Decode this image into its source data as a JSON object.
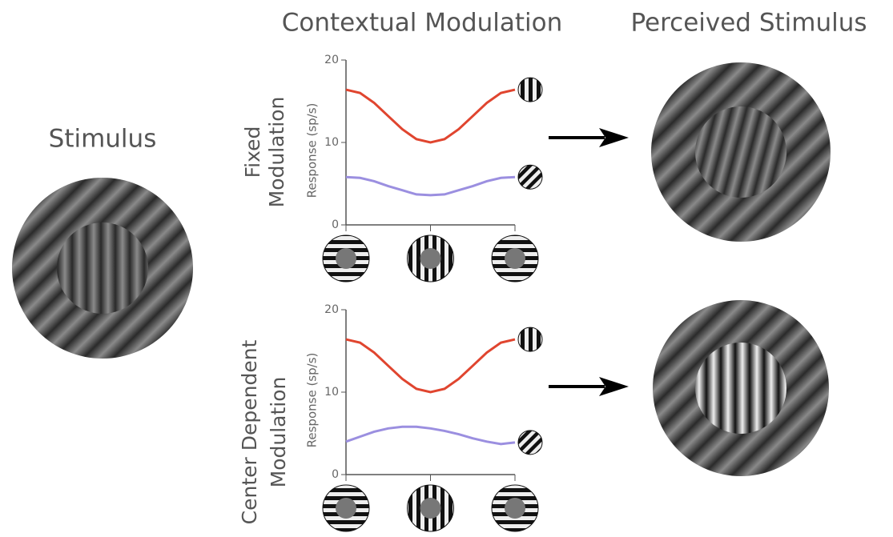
{
  "header": {
    "stimulus": "Stimulus",
    "contextual": "Contextual Modulation",
    "perceived": "Perceived Stimulus"
  },
  "chart_data": [
    {
      "type": "line",
      "label_lines": [
        "Fixed",
        "Modulation"
      ],
      "y_label": "Response (sp/s)",
      "x": [
        0,
        15,
        30,
        45,
        60,
        75,
        90,
        105,
        120,
        135,
        150,
        165,
        180
      ],
      "xlim": [
        0,
        180
      ],
      "xticks": [
        0,
        90,
        180
      ],
      "ylim": [
        0,
        20
      ],
      "yticks": [
        0,
        10,
        20
      ],
      "series": [
        {
          "color": "#e0452f",
          "values": [
            16.4,
            16.0,
            14.8,
            13.2,
            11.6,
            10.4,
            10.0,
            10.4,
            11.6,
            13.2,
            14.8,
            16.0,
            16.4
          ]
        },
        {
          "color": "#9b8fe0",
          "values": [
            5.8,
            5.7,
            5.3,
            4.7,
            4.2,
            3.7,
            3.6,
            3.7,
            4.2,
            4.7,
            5.3,
            5.7,
            5.8
          ]
        }
      ]
    },
    {
      "type": "line",
      "label_lines": [
        "Center Dependent",
        "Modulation"
      ],
      "y_label": "Response (sp/s)",
      "x": [
        0,
        15,
        30,
        45,
        60,
        75,
        90,
        105,
        120,
        135,
        150,
        165,
        180
      ],
      "xlim": [
        0,
        180
      ],
      "xticks": [
        0,
        90,
        180
      ],
      "ylim": [
        0,
        20
      ],
      "yticks": [
        0,
        10,
        20
      ],
      "series": [
        {
          "color": "#e0452f",
          "values": [
            16.4,
            16.0,
            14.8,
            13.2,
            11.6,
            10.4,
            10.0,
            10.4,
            11.6,
            13.2,
            14.8,
            16.0,
            16.4
          ]
        },
        {
          "color": "#9b8fe0",
          "values": [
            4.0,
            4.6,
            5.2,
            5.6,
            5.8,
            5.8,
            5.6,
            5.3,
            4.9,
            4.4,
            4.0,
            3.7,
            3.9
          ]
        }
      ]
    }
  ]
}
